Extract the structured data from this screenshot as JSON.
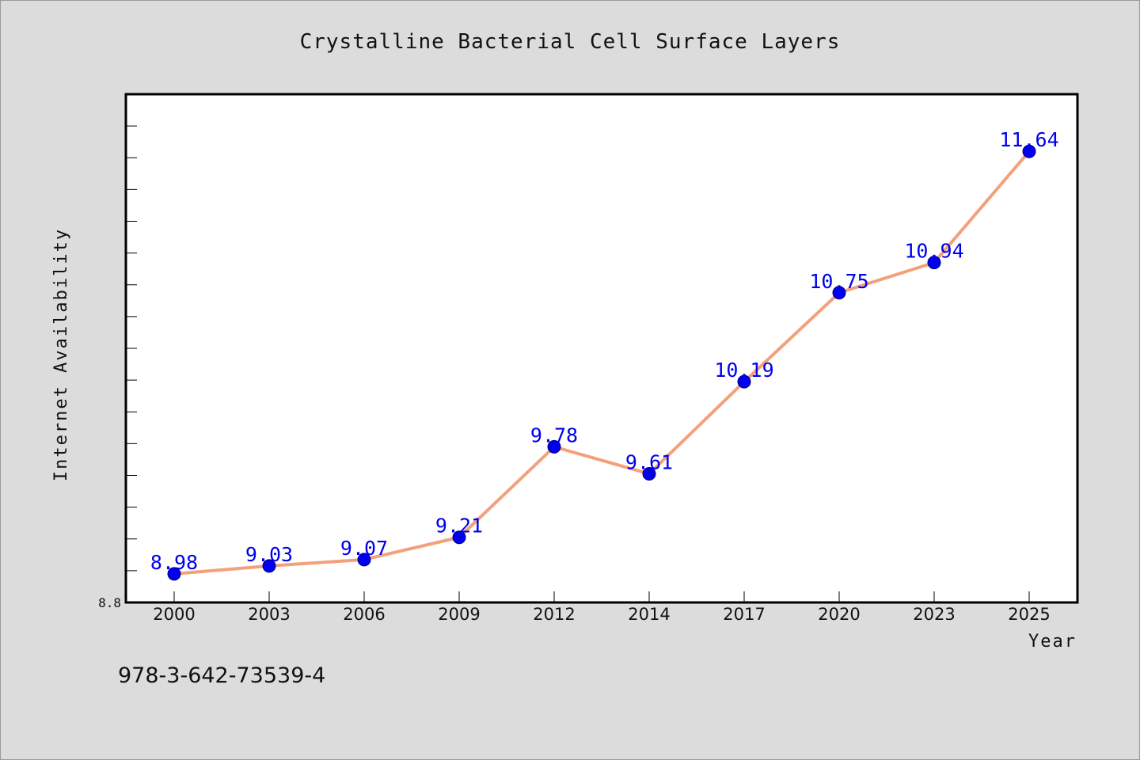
{
  "chart_data": {
    "type": "line",
    "title": "Crystalline Bacterial Cell Surface Layers",
    "xlabel": "Year",
    "ylabel": "Internet Availability",
    "categories": [
      "2000",
      "2003",
      "2006",
      "2009",
      "2012",
      "2014",
      "2017",
      "2020",
      "2023",
      "2025"
    ],
    "series": [
      {
        "values": [
          8.98,
          9.03,
          9.07,
          9.21,
          9.78,
          9.61,
          10.19,
          10.75,
          10.94,
          11.64
        ],
        "labels": [
          "8.98",
          "9.03",
          "9.07",
          "9.21",
          "9.78",
          "9.61",
          "10.19",
          "10.75",
          "10.94",
          "11.64"
        ]
      }
    ],
    "ylim": [
      8.8,
      12.0
    ],
    "y_tick_label": "8.8",
    "grid": false,
    "line_color": "#f4a07a",
    "marker_color": "#0000ee",
    "label_color": "#0000ee"
  },
  "footer": {
    "isbn": "978-3-642-73539-4"
  }
}
